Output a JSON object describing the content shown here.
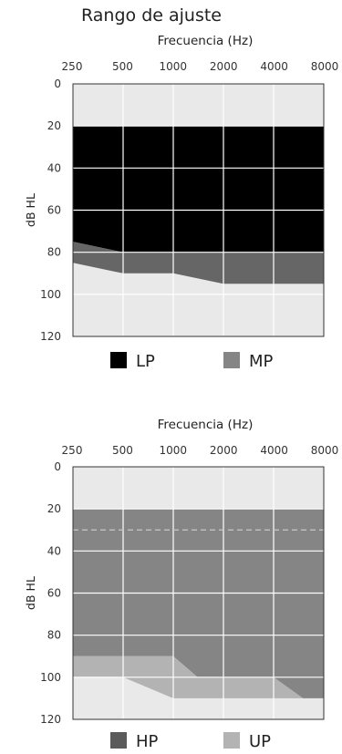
{
  "title": "Rango de ajuste",
  "chart_data": [
    {
      "type": "area",
      "xlabel": "Frecuencia (Hz)",
      "ylabel": "dB HL",
      "x_categories": [
        "250",
        "500",
        "1000",
        "2000",
        "4000",
        "8000"
      ],
      "y_ticks": [
        0,
        20,
        40,
        60,
        80,
        100,
        120
      ],
      "ylim": [
        0,
        120
      ],
      "y_inverted": true,
      "grid": true,
      "legend_position": "bottom",
      "series": [
        {
          "name": "LP",
          "color": "#000000",
          "top": [
            [
              250,
              20
            ],
            [
              8000,
              20
            ]
          ],
          "bottom": [
            [
              250,
              75
            ],
            [
              500,
              80
            ],
            [
              1000,
              80
            ],
            [
              2000,
              80
            ],
            [
              2000,
              80
            ],
            [
              8000,
              80
            ]
          ]
        },
        {
          "name": "MP",
          "color": "#666666",
          "top": [
            [
              250,
              75
            ],
            [
              500,
              80
            ],
            [
              1000,
              80
            ],
            [
              8000,
              80
            ]
          ],
          "bottom": [
            [
              250,
              85
            ],
            [
              500,
              90
            ],
            [
              1000,
              90
            ],
            [
              2000,
              95
            ],
            [
              8000,
              95
            ]
          ],
          "upper_edge": [
            [
              250,
              75
            ],
            [
              500,
              80
            ],
            [
              1000,
              80
            ],
            [
              1300,
              80
            ],
            [
              2000,
              91
            ],
            [
              8000,
              91
            ]
          ]
        }
      ],
      "legend": [
        {
          "label": "LP",
          "color": "#000000"
        },
        {
          "label": "MP",
          "color": "#858585"
        }
      ]
    },
    {
      "type": "area",
      "xlabel": "Frecuencia (Hz)",
      "ylabel": "dB HL",
      "x_categories": [
        "250",
        "500",
        "1000",
        "2000",
        "4000",
        "8000"
      ],
      "y_ticks": [
        0,
        20,
        40,
        60,
        80,
        100,
        120
      ],
      "ylim": [
        0,
        120
      ],
      "y_inverted": true,
      "grid": true,
      "legend_position": "bottom",
      "reference_line_dashed": 30,
      "series": [
        {
          "name": "HP",
          "color": "#858585",
          "top": [
            [
              250,
              20
            ],
            [
              8000,
              20
            ]
          ],
          "bottom": [
            [
              250,
              90
            ],
            [
              1000,
              90
            ],
            [
              1400,
              100
            ],
            [
              4000,
              100
            ],
            [
              6000,
              110
            ],
            [
              8000,
              110
            ]
          ]
        },
        {
          "name": "UP",
          "color": "#b3b3b3",
          "top": [
            [
              250,
              90
            ],
            [
              1000,
              90
            ],
            [
              1400,
              100
            ],
            [
              4000,
              100
            ],
            [
              6000,
              110
            ],
            [
              8000,
              110
            ]
          ],
          "bottom": [
            [
              250,
              100
            ],
            [
              500,
              100
            ],
            [
              1000,
              110
            ],
            [
              8000,
              110
            ]
          ]
        }
      ],
      "legend": [
        {
          "label": "HP",
          "color": "#5a5a5a"
        },
        {
          "label": "UP",
          "color": "#b3b3b3"
        }
      ]
    }
  ]
}
